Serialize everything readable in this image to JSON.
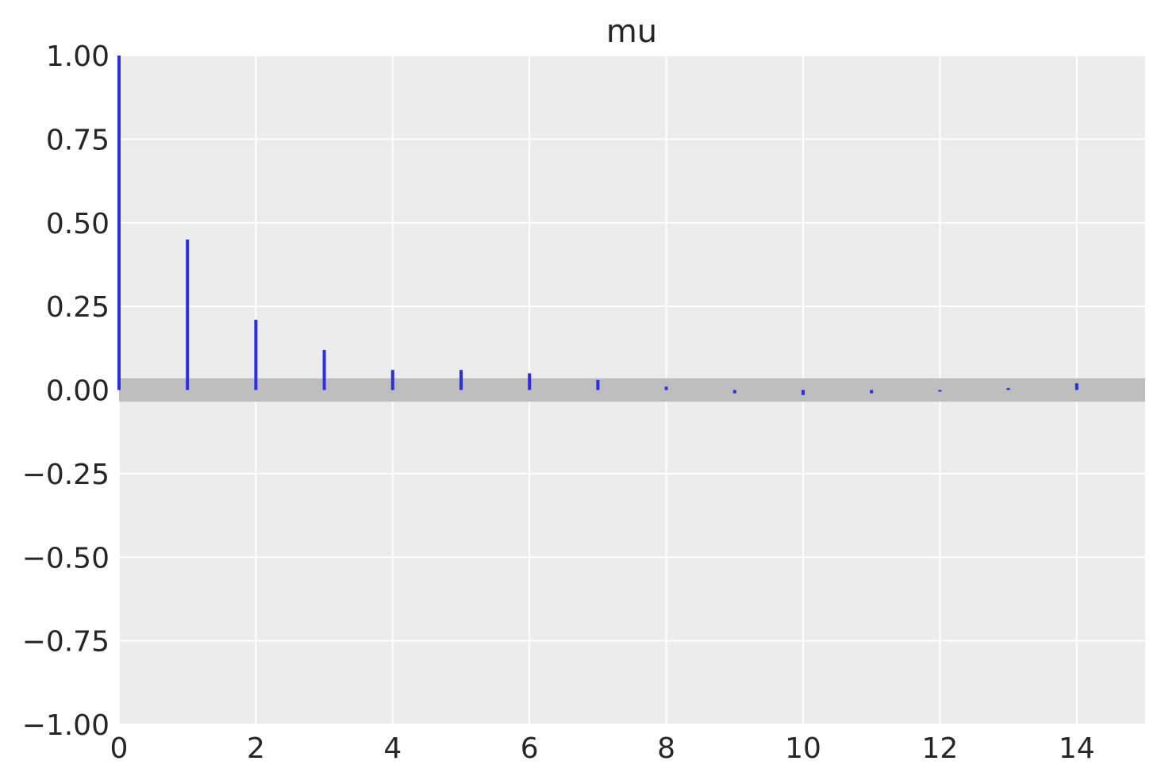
{
  "chart_data": {
    "type": "bar",
    "title": "mu",
    "xlabel": "",
    "ylabel": "",
    "xlim": [
      0,
      15
    ],
    "ylim": [
      -1,
      1
    ],
    "x_ticks": [
      0,
      2,
      4,
      6,
      8,
      10,
      12,
      14
    ],
    "x_tick_labels": [
      "0",
      "2",
      "4",
      "6",
      "8",
      "10",
      "12",
      "14"
    ],
    "y_ticks": [
      1,
      0.75,
      0.5,
      0.25,
      0,
      -0.25,
      -0.5,
      -0.75,
      -1
    ],
    "y_tick_labels": [
      "1.00",
      "0.75",
      "0.50",
      "0.25",
      "0.00",
      "−0.25",
      "−0.50",
      "−0.75",
      "−1.00"
    ],
    "grid": true,
    "lags": [
      0,
      1,
      2,
      3,
      4,
      5,
      6,
      7,
      8,
      9,
      10,
      11,
      12,
      13,
      14
    ],
    "values": [
      1.0,
      0.45,
      0.21,
      0.12,
      0.06,
      0.06,
      0.05,
      0.03,
      0.01,
      -0.01,
      -0.015,
      -0.01,
      -0.002,
      0.006,
      0.02
    ],
    "confidence_band": [
      -0.035,
      0.035
    ],
    "colors": {
      "bars": "#2a2eec",
      "band": "#bdbdbd",
      "plot_background": "#ececec",
      "grid": "#ffffff",
      "text": "#262626"
    }
  }
}
